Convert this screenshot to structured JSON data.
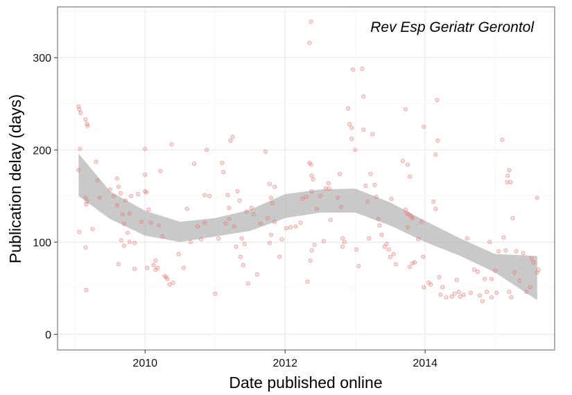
{
  "chart_data": {
    "type": "scatter",
    "annotation": "Rev Esp Geriatr Gerontol",
    "xlabel": "Date published online",
    "ylabel": "Publication delay (days)",
    "xlim": [
      2008.75,
      2015.85
    ],
    "ylim": [
      -17,
      355
    ],
    "x_ticks": [
      2010,
      2012,
      2014
    ],
    "y_ticks": [
      0,
      100,
      200,
      300
    ],
    "grid": true,
    "colors": {
      "points": "#e8706a",
      "band": "#b0b0b0",
      "grid": "#ececec",
      "frame": "#8c8c8c"
    },
    "smooth_band": {
      "x": [
        2009.05,
        2009.5,
        2010.0,
        2010.5,
        2011.0,
        2011.5,
        2012.0,
        2012.5,
        2013.0,
        2013.5,
        2014.0,
        2014.5,
        2015.0,
        2015.6
      ],
      "lower": [
        150,
        125,
        107,
        100,
        106,
        112,
        126,
        132,
        132,
        118,
        100,
        85,
        67,
        37
      ],
      "upper": [
        196,
        155,
        134,
        122,
        126,
        135,
        152,
        157,
        158,
        143,
        123,
        104,
        87,
        85
      ]
    },
    "points": [
      [
        2009.05,
        247
      ],
      [
        2009.06,
        244
      ],
      [
        2009.08,
        240
      ],
      [
        2009.07,
        201
      ],
      [
        2009.05,
        178
      ],
      [
        2009.06,
        111
      ],
      [
        2009.15,
        233
      ],
      [
        2009.17,
        228
      ],
      [
        2009.18,
        226
      ],
      [
        2009.15,
        148
      ],
      [
        2009.16,
        141
      ],
      [
        2009.17,
        144
      ],
      [
        2009.15,
        94
      ],
      [
        2009.16,
        48
      ],
      [
        2009.25,
        114
      ],
      [
        2009.3,
        187
      ],
      [
        2009.32,
        167
      ],
      [
        2009.35,
        148
      ],
      [
        2009.5,
        157
      ],
      [
        2009.55,
        150
      ],
      [
        2009.6,
        169
      ],
      [
        2009.62,
        160
      ],
      [
        2009.65,
        153
      ],
      [
        2009.6,
        140
      ],
      [
        2009.68,
        130
      ],
      [
        2009.7,
        120
      ],
      [
        2009.72,
        145
      ],
      [
        2009.75,
        110
      ],
      [
        2009.66,
        102
      ],
      [
        2009.62,
        76
      ],
      [
        2009.7,
        96
      ],
      [
        2009.78,
        131
      ],
      [
        2009.8,
        150
      ],
      [
        2009.85,
        99
      ],
      [
        2009.78,
        100
      ],
      [
        2009.85,
        71
      ],
      [
        2009.9,
        152
      ],
      [
        2009.95,
        122
      ],
      [
        2010.0,
        201
      ],
      [
        2010.0,
        173
      ],
      [
        2010.0,
        155
      ],
      [
        2010.02,
        154
      ],
      [
        2010.05,
        135
      ],
      [
        2010.08,
        121
      ],
      [
        2010.03,
        72
      ],
      [
        2010.12,
        75
      ],
      [
        2010.15,
        80
      ],
      [
        2010.18,
        72
      ],
      [
        2010.15,
        70
      ],
      [
        2010.2,
        118
      ],
      [
        2010.22,
        177
      ],
      [
        2010.25,
        106
      ],
      [
        2010.28,
        63
      ],
      [
        2010.3,
        62
      ],
      [
        2010.32,
        60
      ],
      [
        2010.35,
        54
      ],
      [
        2010.38,
        206
      ],
      [
        2010.4,
        56
      ],
      [
        2010.48,
        87
      ],
      [
        2010.55,
        72
      ],
      [
        2010.6,
        136
      ],
      [
        2010.65,
        100
      ],
      [
        2010.7,
        185
      ],
      [
        2010.75,
        117
      ],
      [
        2010.8,
        103
      ],
      [
        2010.85,
        151
      ],
      [
        2010.85,
        121
      ],
      [
        2010.88,
        200
      ],
      [
        2010.92,
        150
      ],
      [
        2011.0,
        44
      ],
      [
        2011.05,
        104
      ],
      [
        2011.1,
        186
      ],
      [
        2011.12,
        176
      ],
      [
        2011.15,
        120
      ],
      [
        2011.18,
        151
      ],
      [
        2011.2,
        137
      ],
      [
        2011.2,
        125
      ],
      [
        2011.22,
        210
      ],
      [
        2011.25,
        214
      ],
      [
        2011.27,
        117
      ],
      [
        2011.3,
        95
      ],
      [
        2011.32,
        155
      ],
      [
        2011.35,
        145
      ],
      [
        2011.36,
        84
      ],
      [
        2011.38,
        104
      ],
      [
        2011.4,
        75
      ],
      [
        2011.42,
        98
      ],
      [
        2011.45,
        133
      ],
      [
        2011.47,
        55
      ],
      [
        2011.52,
        137
      ],
      [
        2011.55,
        130
      ],
      [
        2011.6,
        65
      ],
      [
        2011.65,
        120
      ],
      [
        2011.72,
        198
      ],
      [
        2011.75,
        126
      ],
      [
        2011.78,
        163
      ],
      [
        2011.8,
        148
      ],
      [
        2011.82,
        142
      ],
      [
        2011.85,
        160
      ],
      [
        2011.78,
        99
      ],
      [
        2011.8,
        108
      ],
      [
        2011.85,
        122
      ],
      [
        2011.92,
        84
      ],
      [
        2011.95,
        103
      ],
      [
        2012.02,
        115
      ],
      [
        2012.08,
        116
      ],
      [
        2012.15,
        117
      ],
      [
        2012.22,
        121
      ],
      [
        2012.25,
        147
      ],
      [
        2012.3,
        149
      ],
      [
        2012.32,
        57
      ],
      [
        2012.35,
        316
      ],
      [
        2012.37,
        339
      ],
      [
        2012.35,
        186
      ],
      [
        2012.37,
        184
      ],
      [
        2012.38,
        172
      ],
      [
        2012.4,
        168
      ],
      [
        2012.38,
        155
      ],
      [
        2012.36,
        80
      ],
      [
        2012.38,
        91
      ],
      [
        2012.42,
        97
      ],
      [
        2012.45,
        136
      ],
      [
        2012.5,
        150
      ],
      [
        2012.55,
        101
      ],
      [
        2012.58,
        158
      ],
      [
        2012.62,
        164
      ],
      [
        2012.63,
        158
      ],
      [
        2012.65,
        124
      ],
      [
        2012.75,
        148
      ],
      [
        2012.78,
        174
      ],
      [
        2012.8,
        138
      ],
      [
        2012.82,
        104
      ],
      [
        2012.85,
        100
      ],
      [
        2012.82,
        95
      ],
      [
        2012.9,
        245
      ],
      [
        2012.92,
        228
      ],
      [
        2012.95,
        212
      ],
      [
        2012.95,
        224
      ],
      [
        2012.97,
        287
      ],
      [
        2013.0,
        200
      ],
      [
        2013.02,
        92
      ],
      [
        2013.05,
        74
      ],
      [
        2013.1,
        288
      ],
      [
        2013.12,
        258
      ],
      [
        2013.12,
        222
      ],
      [
        2013.15,
        161
      ],
      [
        2013.18,
        144
      ],
      [
        2013.2,
        104
      ],
      [
        2013.22,
        174
      ],
      [
        2013.25,
        217
      ],
      [
        2013.28,
        162
      ],
      [
        2013.3,
        149
      ],
      [
        2013.33,
        125
      ],
      [
        2013.35,
        118
      ],
      [
        2013.38,
        108
      ],
      [
        2013.42,
        95
      ],
      [
        2013.45,
        98
      ],
      [
        2013.48,
        92
      ],
      [
        2013.5,
        84
      ],
      [
        2013.52,
        147
      ],
      [
        2013.55,
        87
      ],
      [
        2013.58,
        76
      ],
      [
        2013.68,
        188
      ],
      [
        2013.72,
        244
      ],
      [
        2013.75,
        184
      ],
      [
        2013.78,
        171
      ],
      [
        2013.72,
        135
      ],
      [
        2013.74,
        131
      ],
      [
        2013.77,
        130
      ],
      [
        2013.8,
        128
      ],
      [
        2013.82,
        126
      ],
      [
        2013.75,
        116
      ],
      [
        2013.82,
        77
      ],
      [
        2013.78,
        73
      ],
      [
        2013.85,
        78
      ],
      [
        2013.9,
        103
      ],
      [
        2013.95,
        122
      ],
      [
        2013.97,
        84
      ],
      [
        2013.98,
        225
      ],
      [
        2013.98,
        51
      ],
      [
        2014.05,
        56
      ],
      [
        2014.08,
        54
      ],
      [
        2014.12,
        144
      ],
      [
        2014.15,
        136
      ],
      [
        2014.15,
        195
      ],
      [
        2014.17,
        254
      ],
      [
        2014.18,
        210
      ],
      [
        2014.2,
        62
      ],
      [
        2014.22,
        43
      ],
      [
        2014.25,
        51
      ],
      [
        2014.3,
        40
      ],
      [
        2014.38,
        41
      ],
      [
        2014.42,
        44
      ],
      [
        2014.45,
        59
      ],
      [
        2014.48,
        46
      ],
      [
        2014.5,
        41
      ],
      [
        2014.55,
        43
      ],
      [
        2014.6,
        104
      ],
      [
        2014.65,
        45
      ],
      [
        2014.7,
        70
      ],
      [
        2014.75,
        68
      ],
      [
        2014.78,
        42
      ],
      [
        2014.82,
        36
      ],
      [
        2014.85,
        60
      ],
      [
        2014.88,
        46
      ],
      [
        2014.92,
        100
      ],
      [
        2014.95,
        40
      ],
      [
        2014.95,
        60
      ],
      [
        2015.0,
        69
      ],
      [
        2015.02,
        45
      ],
      [
        2015.05,
        90
      ],
      [
        2015.1,
        211
      ],
      [
        2015.12,
        105
      ],
      [
        2015.15,
        91
      ],
      [
        2015.17,
        165
      ],
      [
        2015.18,
        172
      ],
      [
        2015.2,
        178
      ],
      [
        2015.22,
        165
      ],
      [
        2015.25,
        126
      ],
      [
        2015.2,
        46
      ],
      [
        2015.23,
        40
      ],
      [
        2015.28,
        67
      ],
      [
        2015.3,
        90
      ],
      [
        2015.35,
        58
      ],
      [
        2015.4,
        88
      ],
      [
        2015.45,
        46
      ],
      [
        2015.5,
        51
      ],
      [
        2015.52,
        82
      ],
      [
        2015.55,
        78
      ],
      [
        2015.6,
        148
      ],
      [
        2015.62,
        70
      ],
      [
        2015.6,
        67
      ]
    ]
  }
}
